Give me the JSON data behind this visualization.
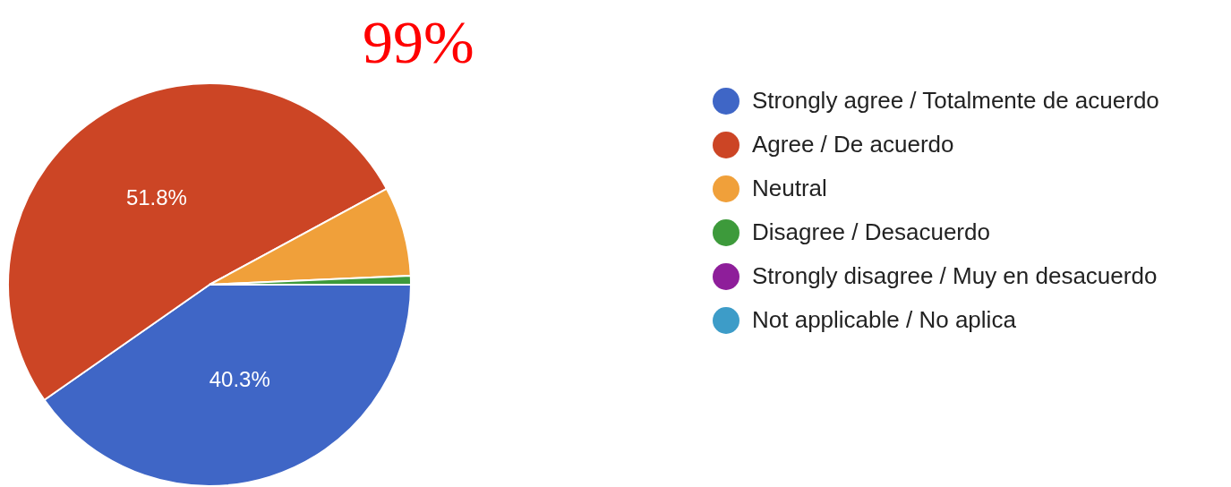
{
  "chart_data": {
    "type": "pie",
    "categories": [
      "Strongly agree / Totalmente de acuerdo",
      "Agree / De acuerdo",
      "Neutral",
      "Disagree / Desacuerdo",
      "Strongly disagree / Muy en desacuerdo",
      "Not applicable / No aplica"
    ],
    "values": [
      40.3,
      51.8,
      7.2,
      0.7,
      0,
      0
    ],
    "colors": [
      "#3f66c6",
      "#cc4525",
      "#f0a03a",
      "#3d9a3b",
      "#8e1e9a",
      "#3d9cc8"
    ],
    "value_labels": [
      "40.3%",
      "51.8%",
      null,
      null,
      null,
      null
    ],
    "legend": "right",
    "annotations": [
      "99%"
    ]
  }
}
